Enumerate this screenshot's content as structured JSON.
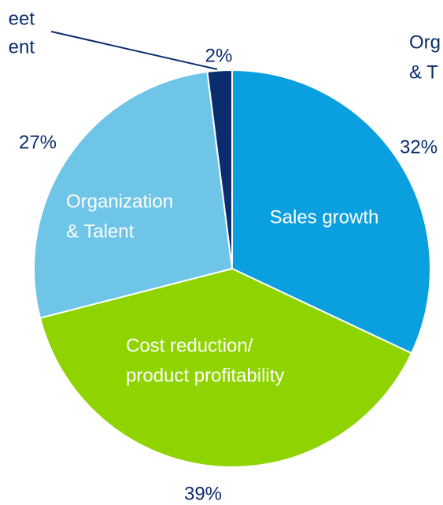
{
  "chart_data": {
    "type": "pie",
    "labels": [
      [
        "Sales growth"
      ],
      [
        "Cost reduction/",
        "product profitability"
      ],
      [
        "Organization",
        "& Talent"
      ],
      [
        "eet",
        "ent"
      ]
    ],
    "values": [
      32,
      39,
      27,
      2
    ],
    "value_labels": [
      "32%",
      "39%",
      "27%",
      "2%"
    ],
    "colors": [
      "#0a9fdf",
      "#8fd400",
      "#6fc5e8",
      "#0b2d6e"
    ],
    "annotations": [
      [
        "Org",
        "& T"
      ]
    ]
  }
}
